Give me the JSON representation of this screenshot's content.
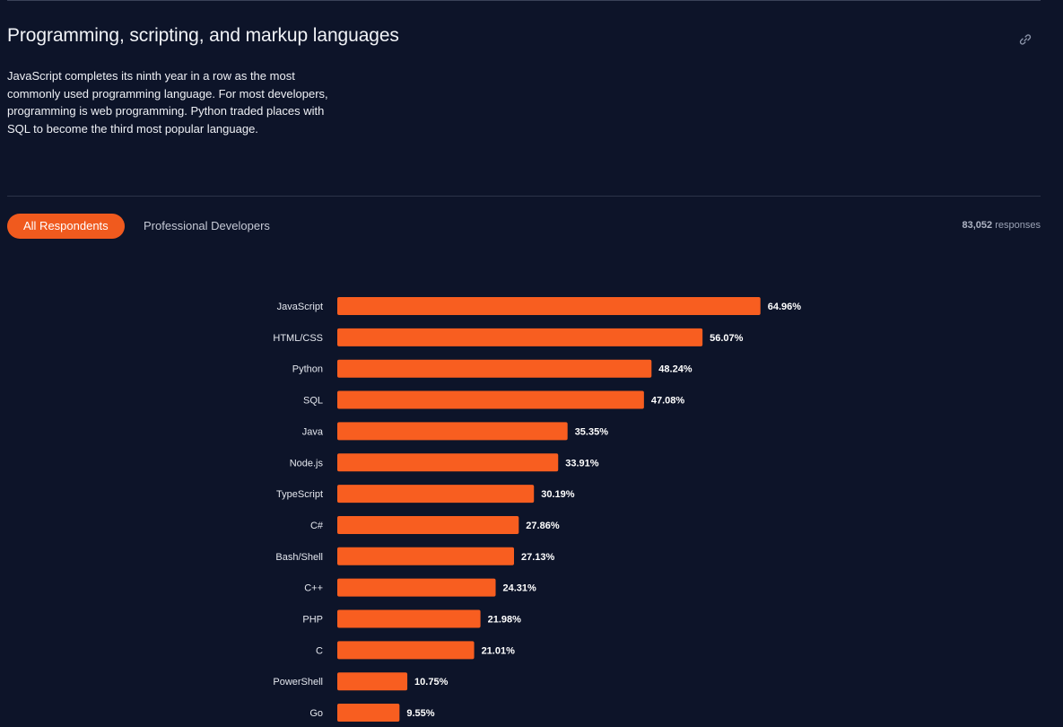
{
  "section": {
    "title": "Programming, scripting, and markup languages",
    "description": "JavaScript completes its ninth year in a row as the most commonly used programming language. For most developers, programming is web programming. Python traded places with SQL to become the third most popular language.",
    "link_icon": "link-icon"
  },
  "tabs": {
    "all_respondents": "All Respondents",
    "professional_developers": "Professional Developers",
    "active": "All Respondents"
  },
  "responses": {
    "count": "83,052",
    "label": "responses"
  },
  "colors": {
    "background": "#0d1429",
    "accent": "#f05a1e",
    "bar": "#f85e20"
  },
  "chart_data": {
    "type": "bar",
    "orientation": "horizontal",
    "categories": [
      "JavaScript",
      "HTML/CSS",
      "Python",
      "SQL",
      "Java",
      "Node.js",
      "TypeScript",
      "C#",
      "Bash/Shell",
      "C++",
      "PHP",
      "C",
      "PowerShell",
      "Go"
    ],
    "values": [
      64.96,
      56.07,
      48.24,
      47.08,
      35.35,
      33.91,
      30.19,
      27.86,
      27.13,
      24.31,
      21.98,
      21.01,
      10.75,
      9.55
    ],
    "value_labels": [
      "64.96%",
      "56.07%",
      "48.24%",
      "47.08%",
      "35.35%",
      "33.91%",
      "30.19%",
      "27.86%",
      "27.13%",
      "24.31%",
      "21.98%",
      "21.01%",
      "10.75%",
      "9.55%"
    ],
    "unit": "%",
    "xlim": [
      0,
      65
    ],
    "title": "",
    "xlabel": "",
    "ylabel": ""
  }
}
